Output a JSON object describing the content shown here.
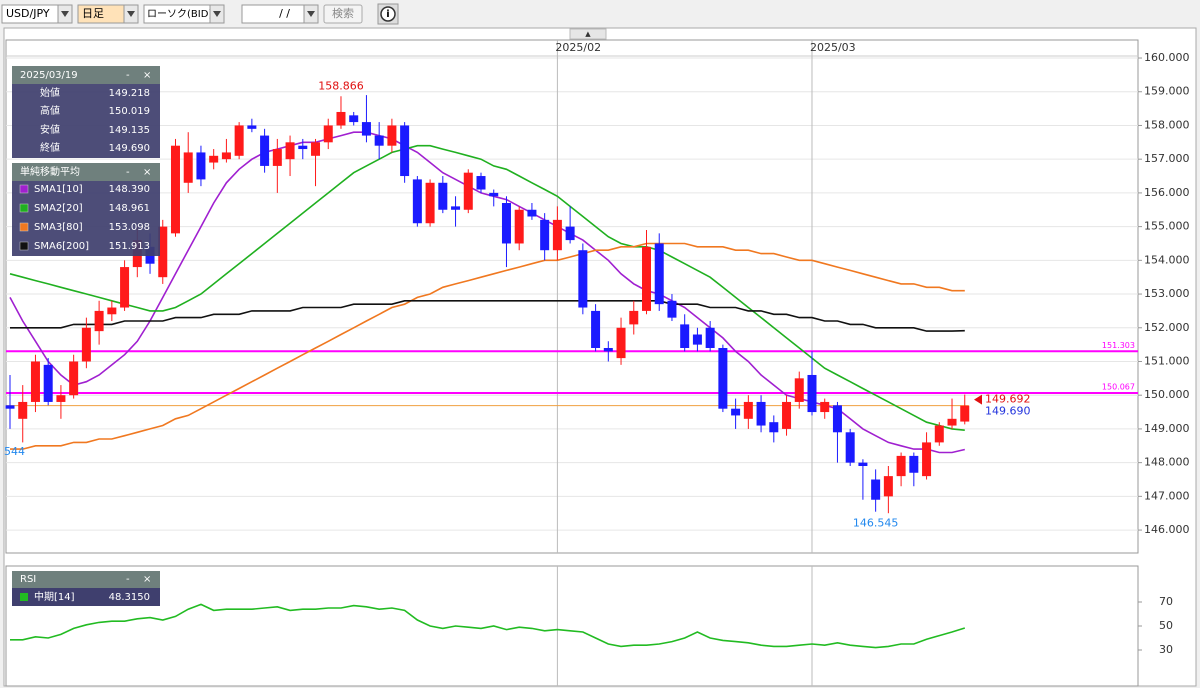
{
  "toolbar": {
    "symbol": "USD/JPY",
    "timeframe": "日足",
    "chart_type": "ローソク(BID)",
    "date": "/  /",
    "search": "検索",
    "info": "i",
    "collapse": "▲"
  },
  "info_panel": {
    "date": "2025/03/19",
    "minimize": "-",
    "close": "×",
    "rows": [
      {
        "label": "始値",
        "value": "149.218"
      },
      {
        "label": "高値",
        "value": "150.019"
      },
      {
        "label": "安値",
        "value": "149.135"
      },
      {
        "label": "終値",
        "value": "149.690"
      }
    ]
  },
  "sma_panel": {
    "title": "単純移動平均",
    "minimize": "-",
    "close": "×"
  },
  "rsi_panel": {
    "minimize": "-",
    "close": "×"
  },
  "chart_data": [
    {
      "type": "candlestick",
      "categories": [
        null,
        null,
        null,
        null,
        null,
        null,
        null,
        null,
        null,
        null,
        null,
        null,
        null,
        null,
        null,
        null,
        null,
        null,
        null,
        null,
        null,
        null,
        null,
        null,
        null,
        null,
        null,
        null,
        null,
        null,
        null,
        null,
        null,
        null,
        null,
        null,
        null,
        null,
        null,
        null,
        null,
        null,
        null,
        "2025/02",
        null,
        null,
        null,
        null,
        null,
        null,
        null,
        null,
        null,
        null,
        null,
        null,
        null,
        null,
        null,
        null,
        null,
        null,
        null,
        "2025/03",
        null,
        null,
        null,
        null,
        null,
        null,
        null,
        null,
        null,
        null,
        null,
        null
      ],
      "open": [
        149.7,
        149.3,
        149.8,
        150.9,
        149.8,
        150.0,
        151.0,
        151.9,
        152.4,
        152.6,
        153.8,
        154.4,
        153.5,
        154.8,
        156.3,
        157.2,
        156.9,
        157.0,
        157.1,
        158.0,
        157.7,
        156.8,
        157.0,
        157.4,
        157.1,
        157.5,
        158.0,
        158.3,
        158.1,
        157.7,
        157.4,
        158.0,
        156.4,
        155.1,
        156.3,
        155.6,
        155.5,
        156.5,
        156.0,
        155.7,
        154.5,
        155.5,
        155.2,
        154.3,
        155.0,
        154.3,
        152.5,
        151.4,
        151.1,
        152.1,
        152.5,
        154.5,
        152.8,
        152.1,
        151.8,
        152.0,
        151.4,
        149.6,
        149.3,
        149.8,
        149.2,
        149.0,
        149.8,
        150.6,
        149.5,
        149.7,
        148.9,
        148.0,
        147.5,
        147.0,
        147.6,
        148.2,
        147.6,
        148.6,
        149.1,
        149.218
      ],
      "high": [
        150.6,
        150.3,
        151.2,
        151.1,
        150.3,
        151.2,
        152.3,
        152.8,
        152.8,
        154.0,
        155.0,
        154.8,
        155.2,
        157.6,
        157.8,
        157.4,
        157.3,
        157.6,
        158.1,
        158.2,
        157.9,
        157.6,
        157.7,
        157.6,
        157.6,
        158.2,
        158.866,
        158.4,
        158.9,
        158.1,
        158.2,
        158.1,
        156.5,
        156.4,
        156.5,
        155.9,
        156.7,
        156.6,
        156.1,
        155.9,
        155.6,
        155.7,
        155.4,
        155.6,
        155.6,
        154.5,
        152.7,
        151.6,
        152.3,
        152.8,
        154.9,
        154.8,
        153.0,
        152.4,
        152.0,
        152.2,
        151.5,
        149.9,
        150.0,
        150.0,
        149.4,
        150.0,
        150.7,
        151.3,
        149.9,
        149.8,
        149.0,
        148.1,
        147.8,
        147.9,
        148.3,
        148.3,
        148.9,
        149.2,
        149.9,
        150.019
      ],
      "low": [
        149.0,
        148.6,
        149.5,
        149.7,
        149.3,
        149.9,
        150.8,
        151.5,
        152.2,
        152.5,
        153.5,
        153.6,
        153.3,
        154.7,
        156.0,
        156.2,
        156.7,
        156.9,
        157.0,
        157.8,
        156.6,
        156.0,
        156.5,
        157.0,
        156.2,
        157.3,
        157.9,
        158.0,
        157.5,
        157.0,
        157.2,
        156.3,
        155.0,
        155.0,
        155.4,
        155.0,
        155.4,
        156.0,
        155.6,
        153.8,
        154.3,
        155.2,
        154.0,
        154.0,
        154.5,
        152.4,
        151.3,
        151.0,
        150.9,
        151.8,
        152.4,
        152.5,
        152.2,
        151.3,
        151.3,
        151.3,
        149.5,
        149.0,
        149.0,
        148.9,
        148.6,
        148.8,
        149.6,
        149.4,
        149.3,
        148.0,
        147.9,
        146.9,
        146.545,
        146.5,
        147.3,
        147.3,
        147.5,
        148.5,
        149.0,
        149.135
      ],
      "close": [
        149.6,
        149.8,
        151.0,
        149.8,
        150.0,
        151.0,
        152.0,
        152.5,
        152.6,
        153.8,
        154.6,
        153.9,
        155.0,
        157.4,
        157.2,
        156.4,
        157.1,
        157.2,
        158.0,
        157.9,
        156.8,
        157.3,
        157.5,
        157.3,
        157.5,
        158.0,
        158.4,
        158.1,
        157.7,
        157.4,
        158.0,
        156.5,
        155.1,
        156.3,
        155.5,
        155.5,
        156.6,
        156.1,
        155.9,
        154.5,
        155.5,
        155.3,
        154.3,
        155.2,
        154.6,
        152.6,
        151.4,
        151.3,
        152.0,
        152.5,
        154.4,
        152.7,
        152.3,
        151.4,
        151.5,
        151.4,
        149.6,
        149.4,
        149.8,
        149.1,
        148.9,
        149.8,
        150.5,
        149.5,
        149.8,
        148.9,
        148.0,
        147.9,
        146.9,
        147.6,
        148.2,
        147.7,
        148.6,
        149.1,
        149.3,
        149.69
      ],
      "up_color": "#ff1a1a",
      "down_color": "#1a1aff",
      "series": [
        {
          "name": "SMA1[10]",
          "color": "#a020d0",
          "current": "148.390",
          "values": [
            152.9,
            152.2,
            151.6,
            151.0,
            150.6,
            150.3,
            150.4,
            150.6,
            150.9,
            151.2,
            151.6,
            152.2,
            152.9,
            153.6,
            154.3,
            155.0,
            155.7,
            156.3,
            156.7,
            157.0,
            157.2,
            157.3,
            157.4,
            157.5,
            157.5,
            157.6,
            157.7,
            157.8,
            157.8,
            157.7,
            157.6,
            157.4,
            157.2,
            156.9,
            156.6,
            156.4,
            156.2,
            156.0,
            155.9,
            155.8,
            155.6,
            155.4,
            155.2,
            155.0,
            154.8,
            154.6,
            154.3,
            154.0,
            153.6,
            153.3,
            153.1,
            153.0,
            152.8,
            152.6,
            152.3,
            152.0,
            151.7,
            151.3,
            151.0,
            150.6,
            150.3,
            150.0,
            149.9,
            149.8,
            149.7,
            149.6,
            149.3,
            149.0,
            148.8,
            148.6,
            148.5,
            148.4,
            148.4,
            148.3,
            148.3,
            148.39
          ]
        },
        {
          "name": "SMA2[20]",
          "color": "#20b020",
          "current": "148.961",
          "values": [
            153.6,
            153.5,
            153.4,
            153.3,
            153.2,
            153.1,
            153.0,
            152.9,
            152.8,
            152.7,
            152.6,
            152.5,
            152.5,
            152.6,
            152.8,
            153.0,
            153.3,
            153.6,
            153.9,
            154.2,
            154.5,
            154.8,
            155.1,
            155.4,
            155.7,
            156.0,
            156.3,
            156.6,
            156.8,
            157.0,
            157.2,
            157.3,
            157.4,
            157.4,
            157.3,
            157.2,
            157.1,
            157.0,
            156.8,
            156.7,
            156.5,
            156.3,
            156.1,
            155.9,
            155.6,
            155.3,
            155.0,
            154.7,
            154.5,
            154.4,
            154.4,
            154.3,
            154.1,
            153.9,
            153.7,
            153.5,
            153.2,
            152.9,
            152.6,
            152.3,
            152.0,
            151.7,
            151.4,
            151.1,
            150.8,
            150.6,
            150.4,
            150.2,
            150.0,
            149.8,
            149.6,
            149.4,
            149.2,
            149.1,
            149.0,
            148.961
          ]
        },
        {
          "name": "SMA3[80]",
          "color": "#f07820",
          "current": "153.098",
          "values": [
            148.4,
            148.4,
            148.5,
            148.5,
            148.5,
            148.6,
            148.6,
            148.7,
            148.7,
            148.8,
            148.9,
            149.0,
            149.1,
            149.3,
            149.4,
            149.6,
            149.8,
            150.0,
            150.2,
            150.4,
            150.6,
            150.8,
            151.0,
            151.2,
            151.4,
            151.6,
            151.8,
            152.0,
            152.2,
            152.4,
            152.6,
            152.7,
            152.9,
            153.0,
            153.2,
            153.3,
            153.4,
            153.5,
            153.6,
            153.7,
            153.8,
            153.9,
            154.0,
            154.0,
            154.1,
            154.2,
            154.3,
            154.3,
            154.4,
            154.4,
            154.5,
            154.5,
            154.5,
            154.5,
            154.4,
            154.4,
            154.4,
            154.3,
            154.3,
            154.2,
            154.2,
            154.1,
            154.0,
            154.0,
            153.9,
            153.8,
            153.7,
            153.6,
            153.5,
            153.4,
            153.3,
            153.3,
            153.2,
            153.2,
            153.1,
            153.098
          ]
        },
        {
          "name": "SMA6[200]",
          "color": "#111111",
          "current": "151.913",
          "values": [
            152.0,
            152.0,
            152.0,
            152.0,
            152.0,
            152.1,
            152.1,
            152.1,
            152.1,
            152.2,
            152.2,
            152.2,
            152.2,
            152.3,
            152.3,
            152.3,
            152.4,
            152.4,
            152.4,
            152.5,
            152.5,
            152.5,
            152.5,
            152.6,
            152.6,
            152.6,
            152.6,
            152.7,
            152.7,
            152.7,
            152.7,
            152.8,
            152.8,
            152.8,
            152.8,
            152.8,
            152.8,
            152.8,
            152.8,
            152.8,
            152.8,
            152.8,
            152.8,
            152.8,
            152.8,
            152.8,
            152.8,
            152.8,
            152.8,
            152.8,
            152.8,
            152.8,
            152.7,
            152.7,
            152.7,
            152.6,
            152.6,
            152.6,
            152.5,
            152.5,
            152.4,
            152.4,
            152.3,
            152.3,
            152.2,
            152.2,
            152.1,
            152.1,
            152.0,
            152.0,
            152.0,
            152.0,
            151.9,
            151.9,
            151.9,
            151.913
          ]
        }
      ],
      "hlines": [
        {
          "value": 151.303,
          "color": "#ff00ff"
        },
        {
          "value": 150.067,
          "color": "#ff00ff"
        }
      ],
      "current_line_color": "#f0a040",
      "price_markers": [
        {
          "value": 149.692,
          "color": "#e01010"
        },
        {
          "value": 149.69,
          "label": "149.690",
          "color": "#2233dd"
        }
      ],
      "high_label": 158.866,
      "low_label": 146.545,
      "clipped_label": "544",
      "ylim": [
        145.32,
        160.06
      ],
      "yticks": [
        {
          "value": 146,
          "label": "146.000"
        },
        {
          "value": 147,
          "label": "147.000"
        },
        {
          "value": 148,
          "label": "148.000"
        },
        {
          "value": 149,
          "label": "149.000"
        },
        {
          "value": 150,
          "label": "150.000"
        },
        {
          "value": 151,
          "label": "151.000"
        },
        {
          "value": 152,
          "label": "152.000"
        },
        {
          "value": 153,
          "label": "153.000"
        },
        {
          "value": 154,
          "label": "154.000"
        },
        {
          "value": 155,
          "label": "155.000"
        },
        {
          "value": 156,
          "label": "156.000"
        },
        {
          "value": 157,
          "label": "157.000"
        },
        {
          "value": 158,
          "label": "158.000"
        },
        {
          "value": 159,
          "label": "159.000"
        },
        {
          "value": 160,
          "label": "160.000"
        }
      ],
      "grid": true
    },
    {
      "type": "line",
      "title": "RSI",
      "series": [
        {
          "name": "中期[14]",
          "color": "#22bb22",
          "current": "48.3150",
          "values": [
            38.5,
            38.5,
            41,
            40,
            43,
            48,
            51,
            53,
            54,
            54,
            56,
            57,
            55,
            58,
            64,
            68,
            63,
            64,
            64,
            64,
            65,
            66,
            63,
            64,
            64,
            65,
            65,
            67,
            66,
            64,
            65,
            63,
            55,
            50,
            48,
            50,
            49,
            48,
            50,
            47,
            49,
            48,
            46,
            47,
            46,
            45,
            40,
            35,
            33,
            34,
            34,
            35,
            37,
            40,
            45,
            40,
            38,
            37,
            36,
            34,
            33,
            33,
            34,
            35,
            34,
            36,
            34,
            33,
            32,
            33,
            35,
            35,
            39,
            42,
            45,
            48.315
          ]
        }
      ],
      "ylim": [
        0,
        100
      ],
      "yticks": [
        30,
        50,
        70
      ]
    }
  ]
}
